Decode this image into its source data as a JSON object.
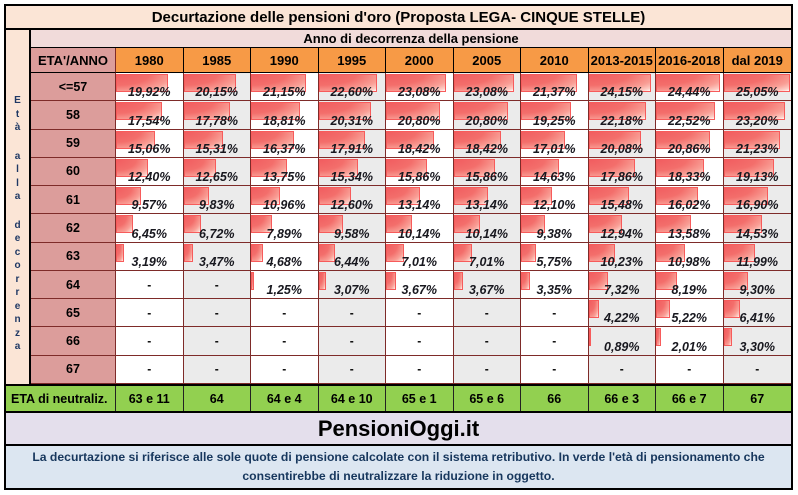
{
  "title": "Decurtazione delle pensioni d'oro (Proposta LEGA- CINQUE STELLE)",
  "chart_data": {
    "type": "table",
    "title": "Decurtazione delle pensioni d'oro (Proposta LEGA- CINQUE STELLE)",
    "column_axis_label": "Anno di decorrenza della pensione",
    "row_axis_label": "Età alla decorrenza",
    "corner_label": "ETA'/ANNO",
    "columns": [
      "1980",
      "1985",
      "1990",
      "1995",
      "2000",
      "2005",
      "2010",
      "2013-2015",
      "2016-2018",
      "dal 2019"
    ],
    "rows": [
      {
        "label": "<=57",
        "values": [
          19.92,
          20.15,
          21.15,
          22.6,
          23.08,
          23.08,
          21.37,
          24.15,
          24.44,
          25.05
        ]
      },
      {
        "label": "58",
        "values": [
          17.54,
          17.78,
          18.81,
          20.31,
          20.8,
          20.8,
          19.25,
          22.18,
          22.52,
          23.2
        ]
      },
      {
        "label": "59",
        "values": [
          15.06,
          15.31,
          16.37,
          17.91,
          18.42,
          18.42,
          17.01,
          20.08,
          20.86,
          21.23
        ]
      },
      {
        "label": "60",
        "values": [
          12.4,
          12.65,
          13.75,
          15.34,
          15.86,
          15.86,
          14.63,
          17.86,
          18.33,
          19.13
        ]
      },
      {
        "label": "61",
        "values": [
          9.57,
          9.83,
          10.96,
          12.6,
          13.14,
          13.14,
          12.1,
          15.48,
          16.02,
          16.9
        ]
      },
      {
        "label": "62",
        "values": [
          6.45,
          6.72,
          7.89,
          9.58,
          10.14,
          10.14,
          9.38,
          12.94,
          13.58,
          14.53
        ]
      },
      {
        "label": "63",
        "values": [
          3.19,
          3.47,
          4.68,
          6.44,
          7.01,
          7.01,
          5.75,
          10.23,
          10.98,
          11.99
        ]
      },
      {
        "label": "64",
        "values": [
          null,
          null,
          1.25,
          3.07,
          3.67,
          3.67,
          3.35,
          7.32,
          8.19,
          9.3
        ]
      },
      {
        "label": "65",
        "values": [
          null,
          null,
          null,
          null,
          null,
          null,
          null,
          4.22,
          5.22,
          6.41
        ]
      },
      {
        "label": "66",
        "values": [
          null,
          null,
          null,
          null,
          null,
          null,
          null,
          0.89,
          2.01,
          3.3
        ]
      },
      {
        "label": "67",
        "values": [
          null,
          null,
          null,
          null,
          null,
          null,
          null,
          null,
          null,
          null
        ]
      }
    ],
    "empty_cell_symbol": "-",
    "bar_max": 25.05,
    "neutralization_row": {
      "label": "ETA di neutraliz.",
      "values": [
        "63 e 11",
        "64",
        "64 e 4",
        "64 e 10",
        "65 e 1",
        "65 e 6",
        "66",
        "66 e 3",
        "66 e 7",
        "67"
      ]
    }
  },
  "brand": "PensioniOggi.it",
  "footer": {
    "line1": "La decurtazione si riferisce alle sole quote di pensione calcolate con il sistema retributivo. In verde l'età di pensionamento che",
    "line2": "consentirebbe di neutralizzare la riduzione in oggetto."
  },
  "colors": {
    "title_bg": "#FBE5D6",
    "anno_bg": "#F1DBDA",
    "header_orange": "#F79A46",
    "label_pink": "#DC9D9B",
    "col_white": "#FFFFFF",
    "col_gray": "#EBEBEB",
    "bar_red": "#F15D60",
    "bar_border": "#F75B5B",
    "green": "#92D050",
    "brand_bg": "#E4DFEC",
    "footer_bg": "#DCE6F1",
    "footer_text": "#17375D",
    "grid_line": "#7E2B29"
  }
}
